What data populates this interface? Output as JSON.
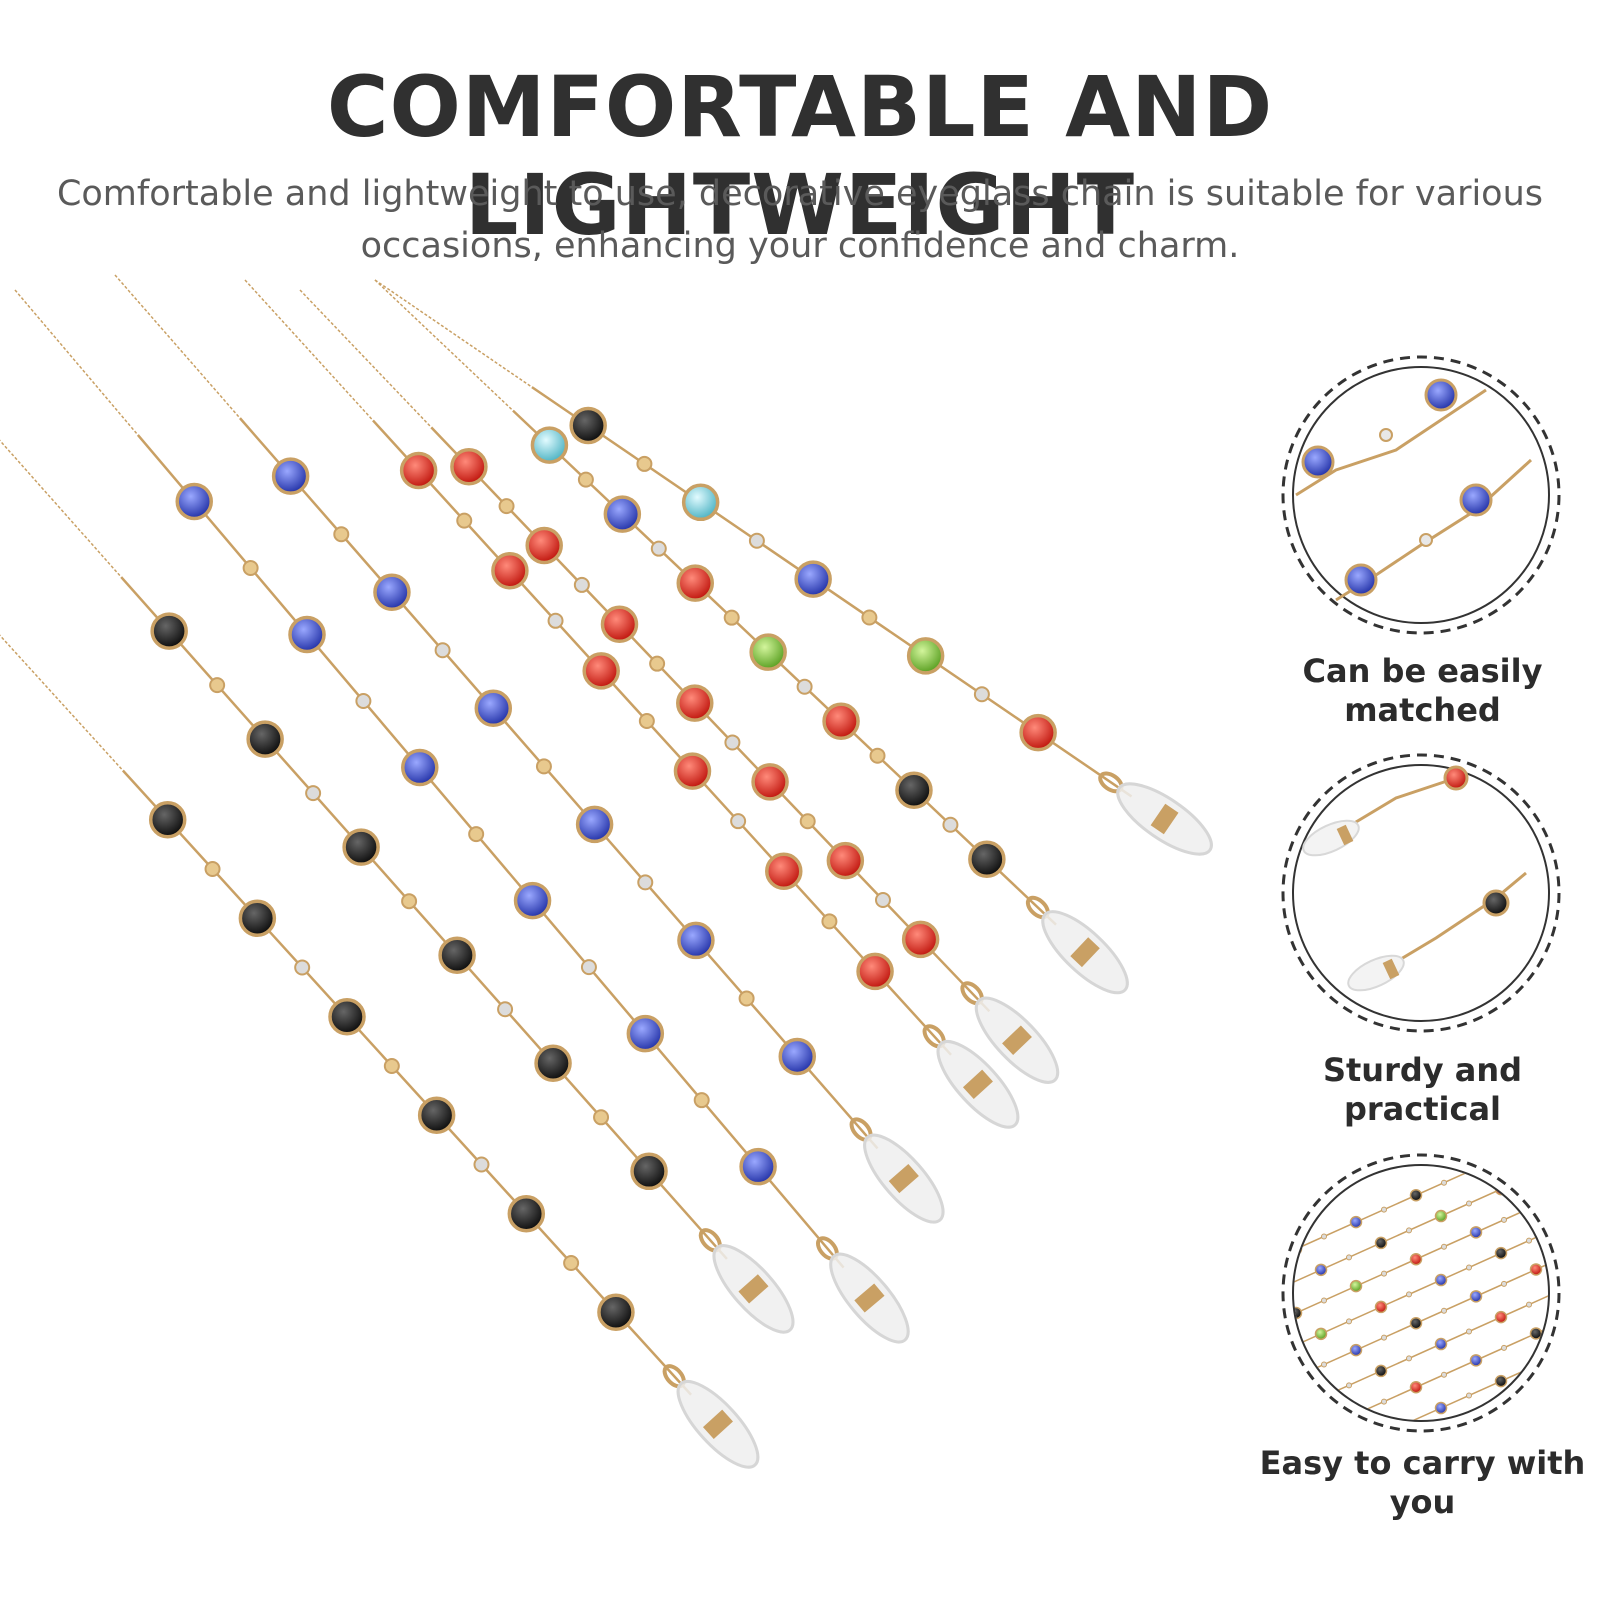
{
  "headline": "COMFORTABLE AND LIGHTWEIGHT",
  "subtext": "Comfortable and lightweight to use, decorative eyeglass chain is suitable for various occasions, enhancing your confidence and charm.",
  "features": [
    {
      "caption": "Can be easily matched",
      "icon": "blue-bead-chain-closeup"
    },
    {
      "caption": "Sturdy and practical",
      "icon": "chain-clasp-closeup"
    },
    {
      "caption": "Easy to carry with you",
      "icon": "multiple-chains-closeup"
    }
  ],
  "colors": {
    "gold": "#c9a064",
    "black_gem": "#1a1a1a",
    "blue_gem": "#3a4fc8",
    "red_gem": "#e0261e",
    "green_gem": "#7cc23a",
    "aqua_gem": "#7fd2df",
    "clear_gem": "#dcdcdc",
    "loop": "#eeeeee"
  }
}
